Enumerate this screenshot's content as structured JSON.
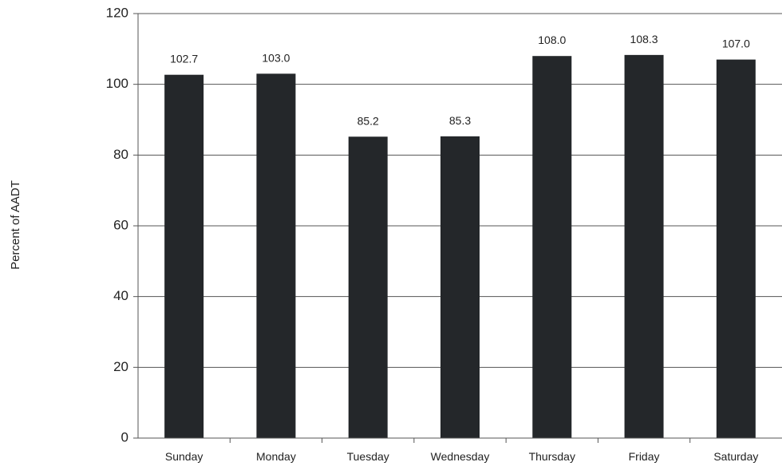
{
  "chart_data": {
    "type": "bar",
    "categories": [
      "Sunday",
      "Monday",
      "Tuesday",
      "Wednesday",
      "Thursday",
      "Friday",
      "Saturday"
    ],
    "values": [
      102.7,
      103.0,
      85.2,
      85.3,
      108.0,
      108.3,
      107.0
    ],
    "data_labels": [
      "102.7",
      "103.0",
      "85.2",
      "85.3",
      "108.0",
      "108.3",
      "107.0"
    ],
    "ylabel": "Percent of AADT",
    "ylim": [
      0,
      120
    ],
    "yticks": [
      0,
      20,
      40,
      60,
      80,
      100,
      120
    ],
    "grid": true,
    "bar_color": "#24272a"
  }
}
